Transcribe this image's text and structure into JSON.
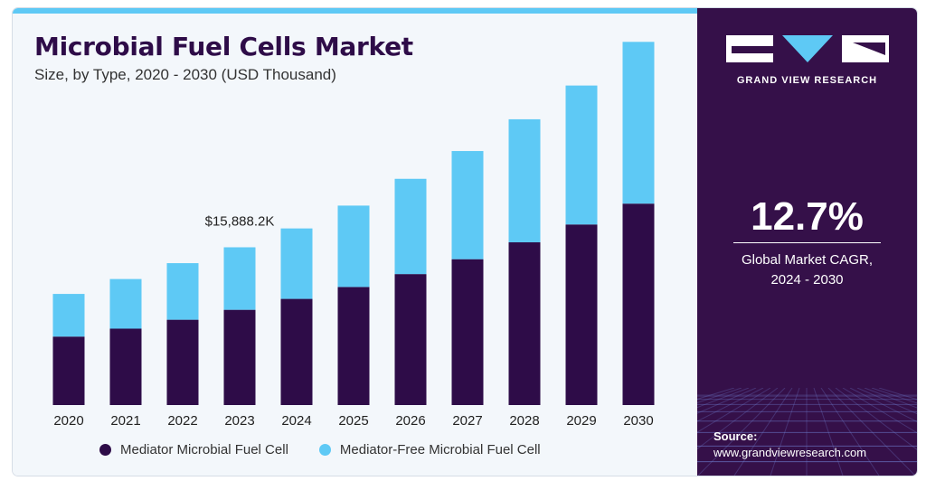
{
  "header": {
    "title": "Microbial Fuel Cells Market",
    "subtitle": "Size, by Type, 2020 - 2030 (USD Thousand)"
  },
  "sidebar": {
    "brand": "GRAND VIEW RESEARCH",
    "cagr_value": "12.7%",
    "cagr_label_line1": "Global Market CAGR,",
    "cagr_label_line2": "2024 - 2030",
    "source_title": "Source:",
    "source_url": "www.grandviewresearch.com"
  },
  "colors": {
    "mediator": "#2e0c48",
    "mediator_free": "#5ec9f5",
    "sidebar_bg": "#351049",
    "accent": "#5ec9f5"
  },
  "chart_data": {
    "type": "bar",
    "stacked": true,
    "categories": [
      "2020",
      "2021",
      "2022",
      "2023",
      "2024",
      "2025",
      "2026",
      "2027",
      "2028",
      "2029",
      "2030"
    ],
    "series": [
      {
        "name": "Mediator Microbial Fuel Cell",
        "values": [
          6.9,
          7.7,
          8.6,
          9.6,
          10.7,
          11.9,
          13.2,
          14.7,
          16.4,
          18.2,
          20.3
        ]
      },
      {
        "name": "Mediator-Free Microbial Fuel Cell",
        "values": [
          4.3,
          5.0,
          5.7,
          6.3,
          7.1,
          8.2,
          9.6,
          10.9,
          12.4,
          14.0,
          16.3
        ]
      }
    ],
    "ylim": [
      0,
      40
    ],
    "annotation": {
      "category": "2023",
      "text": "$15,888.2K"
    },
    "legend_position": "bottom",
    "grid": false
  }
}
